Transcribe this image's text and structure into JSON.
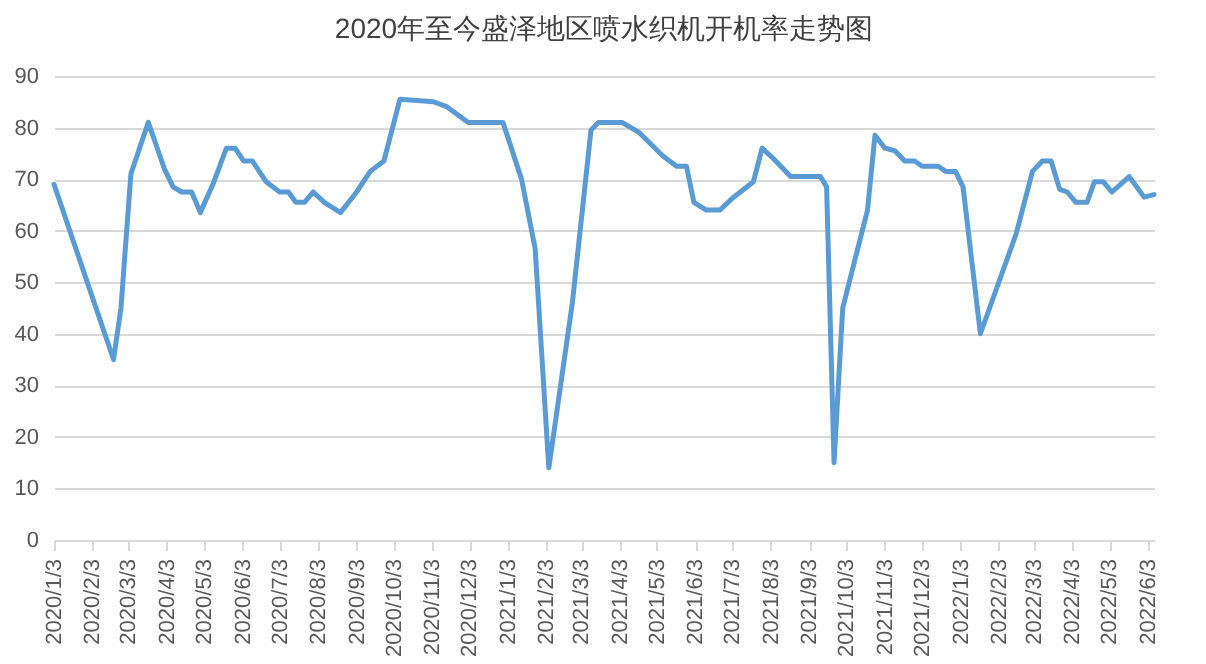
{
  "chart_data": {
    "type": "line",
    "title": "2020年至今盛泽地区喷水织机开机率走势图",
    "x": [
      "2020-01-03",
      "2020-02-20",
      "2020-02-26",
      "2020-03-05",
      "2020-03-19",
      "2020-03-27",
      "2020-04-01",
      "2020-04-08",
      "2020-04-15",
      "2020-04-23",
      "2020-04-30",
      "2020-05-11",
      "2020-05-21",
      "2020-05-28",
      "2020-06-04",
      "2020-06-11",
      "2020-06-22",
      "2020-07-03",
      "2020-07-10",
      "2020-07-16",
      "2020-07-23",
      "2020-07-30",
      "2020-08-08",
      "2020-08-21",
      "2020-09-03",
      "2020-09-14",
      "2020-09-25",
      "2020-10-08",
      "2020-11-04",
      "2020-11-15",
      "2020-12-02",
      "2020-12-30",
      "2021-01-14",
      "2021-01-25",
      "2021-02-05",
      "2021-02-24",
      "2021-03-11",
      "2021-03-17",
      "2021-04-05",
      "2021-04-19",
      "2021-05-08",
      "2021-05-19",
      "2021-05-27",
      "2021-06-02",
      "2021-06-12",
      "2021-06-23",
      "2021-07-04",
      "2021-07-12",
      "2021-07-20",
      "2021-07-27",
      "2021-08-05",
      "2021-08-19",
      "2021-09-12",
      "2021-09-17",
      "2021-09-23",
      "2021-09-30",
      "2021-10-20",
      "2021-10-26",
      "2021-11-03",
      "2021-11-11",
      "2021-11-19",
      "2021-11-27",
      "2021-12-03",
      "2021-12-16",
      "2021-12-22",
      "2021-12-30",
      "2022-01-05",
      "2022-01-19",
      "2022-02-17",
      "2022-03-02",
      "2022-03-10",
      "2022-03-17",
      "2022-03-24",
      "2022-03-30",
      "2022-04-06",
      "2022-04-15",
      "2022-04-21",
      "2022-04-28",
      "2022-05-05",
      "2022-05-12",
      "2022-05-19",
      "2022-05-31",
      "2022-06-08"
    ],
    "series": [
      {
        "color": "#5b9bd5",
        "values": [
          69,
          35,
          45,
          71,
          81,
          75.5,
          72,
          68.5,
          67.5,
          67.5,
          63.5,
          69.5,
          76,
          76,
          73.5,
          73.5,
          69.5,
          67.5,
          67.5,
          65.5,
          65.5,
          67.5,
          65.5,
          63.5,
          67.5,
          71.5,
          73.5,
          85.5,
          85,
          84,
          81,
          81,
          70,
          56.5,
          14,
          46,
          79.5,
          81,
          81,
          79,
          74.5,
          72.5,
          72.5,
          65.5,
          64,
          64,
          66.5,
          68,
          69.5,
          76,
          74,
          70.5,
          70.5,
          68.5,
          15,
          45,
          64,
          78.5,
          76,
          75.5,
          73.5,
          73.5,
          72.5,
          72.5,
          71.5,
          71.5,
          68.5,
          40,
          59.5,
          71.5,
          73.5,
          73.5,
          68,
          67.5,
          65.5,
          65.5,
          69.5,
          69.5,
          67.5,
          69,
          70.5,
          66.5,
          67
        ]
      }
    ],
    "xlim": [
      "2020-01-03",
      "2022-06-08"
    ],
    "xticks": [
      {
        "value": "2020-01-03",
        "label": "2020/1/3"
      },
      {
        "value": "2020-02-03",
        "label": "2020/2/3"
      },
      {
        "value": "2020-03-03",
        "label": "2020/3/3"
      },
      {
        "value": "2020-04-03",
        "label": "2020/4/3"
      },
      {
        "value": "2020-05-03",
        "label": "2020/5/3"
      },
      {
        "value": "2020-06-03",
        "label": "2020/6/3"
      },
      {
        "value": "2020-07-03",
        "label": "2020/7/3"
      },
      {
        "value": "2020-08-03",
        "label": "2020/8/3"
      },
      {
        "value": "2020-09-03",
        "label": "2020/9/3"
      },
      {
        "value": "2020-10-03",
        "label": "2020/10/3"
      },
      {
        "value": "2020-11-03",
        "label": "2020/11/3"
      },
      {
        "value": "2020-12-03",
        "label": "2020/12/3"
      },
      {
        "value": "2021-01-03",
        "label": "2021/1/3"
      },
      {
        "value": "2021-02-03",
        "label": "2021/2/3"
      },
      {
        "value": "2021-03-03",
        "label": "2021/3/3"
      },
      {
        "value": "2021-04-03",
        "label": "2021/4/3"
      },
      {
        "value": "2021-05-03",
        "label": "2021/5/3"
      },
      {
        "value": "2021-06-03",
        "label": "2021/6/3"
      },
      {
        "value": "2021-07-03",
        "label": "2021/7/3"
      },
      {
        "value": "2021-08-03",
        "label": "2021/8/3"
      },
      {
        "value": "2021-09-03",
        "label": "2021/9/3"
      },
      {
        "value": "2021-10-03",
        "label": "2021/10/3"
      },
      {
        "value": "2021-11-03",
        "label": "2021/11/3"
      },
      {
        "value": "2021-12-03",
        "label": "2021/12/3"
      },
      {
        "value": "2022-01-03",
        "label": "2022/1/3"
      },
      {
        "value": "2022-02-03",
        "label": "2022/2/3"
      },
      {
        "value": "2022-03-03",
        "label": "2022/3/3"
      },
      {
        "value": "2022-04-03",
        "label": "2022/4/3"
      },
      {
        "value": "2022-05-03",
        "label": "2022/5/3"
      },
      {
        "value": "2022-06-03",
        "label": "2022/6/3"
      }
    ],
    "ylim": [
      0,
      90
    ],
    "yticks": [
      0,
      10,
      20,
      30,
      40,
      50,
      60,
      70,
      80,
      90
    ],
    "grid": "y"
  }
}
